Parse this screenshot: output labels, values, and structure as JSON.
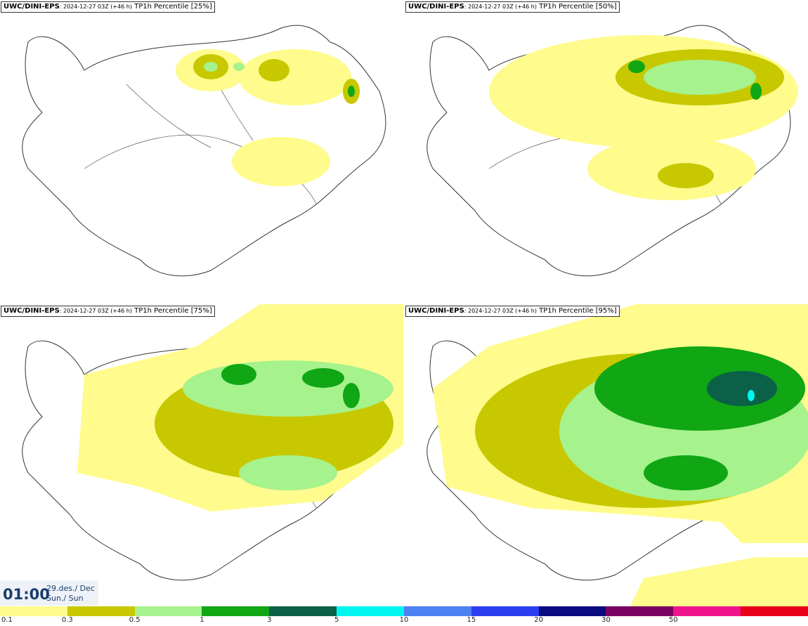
{
  "panels": [
    {
      "model": "UWC/DINI-EPS",
      "run": ": 2024-12-27 03Z (+46 h)",
      "field": " TP1h Percentile [25%]"
    },
    {
      "model": "UWC/DINI-EPS",
      "run": ": 2024-12-27 03Z (+46 h)",
      "field": " TP1h Percentile [50%]"
    },
    {
      "model": "UWC/DINI-EPS",
      "run": ": 2024-12-27 03Z (+46 h)",
      "field": " TP1h Percentile [75%]"
    },
    {
      "model": "UWC/DINI-EPS",
      "run": ": 2024-12-27 03Z (+46 h)",
      "field": " TP1h Percentile [95%]"
    }
  ],
  "time": {
    "clock": "01:00",
    "date_line1": "29.des./ Dec",
    "date_line2": "Sun./ Sun"
  },
  "legend": {
    "colors": [
      "#fffb8c",
      "#c8c800",
      "#a6f28c",
      "#10a614",
      "#0b6148",
      "#00f5f0",
      "#4d80f0",
      "#2a3ef0",
      "#0a0a80",
      "#780060",
      "#f0148c",
      "#e8001a"
    ],
    "labels": [
      "0.1",
      "0.3",
      "0.5",
      "1",
      "3",
      "5",
      "10",
      "15",
      "20",
      "30",
      "50"
    ]
  },
  "map_colors": {
    "land_outline": "#333333",
    "roads": "#555555"
  }
}
